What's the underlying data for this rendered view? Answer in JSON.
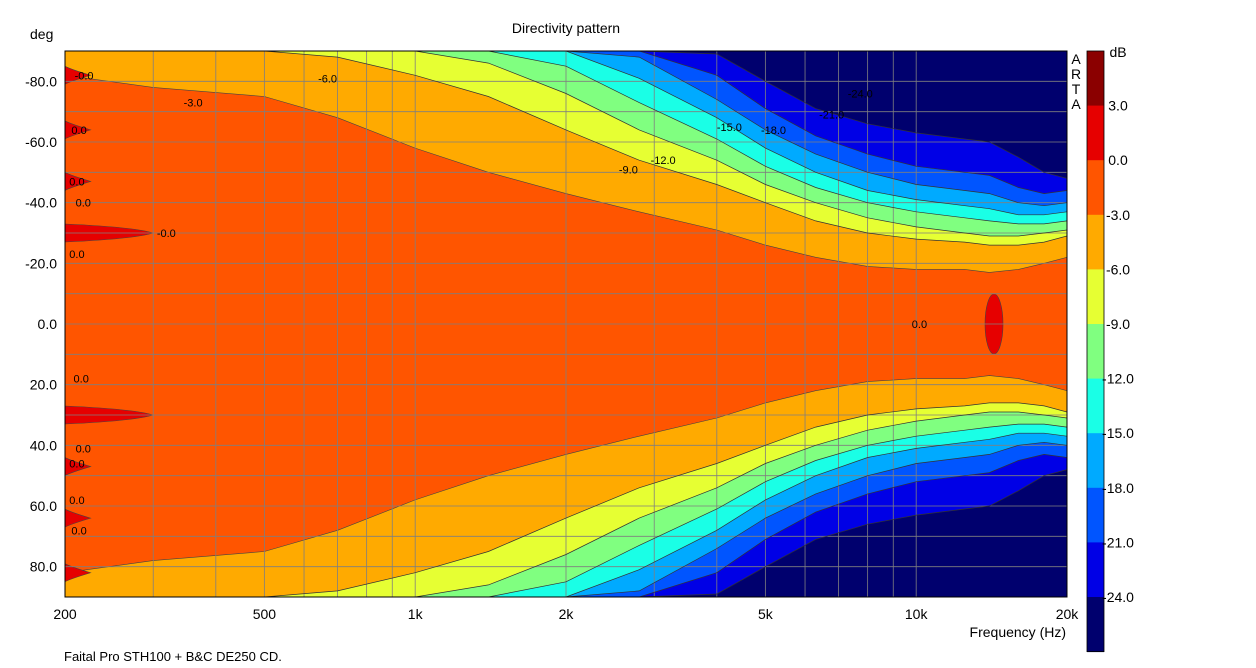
{
  "chart_data": {
    "type": "heatmap",
    "title": "Directivity pattern",
    "ylabel": "deg",
    "xlabel": "Frequency (Hz)",
    "caption": "Faital Pro STH100 + B&C DE250 CD.",
    "watermark": [
      "A",
      "R",
      "T",
      "A"
    ],
    "colorbar_label": "dB",
    "x_scale": "log",
    "xlim": [
      200,
      20000
    ],
    "ylim": [
      -90,
      90
    ],
    "y_inverted": true,
    "grid": true,
    "x_ticks": [
      {
        "value": 200,
        "label": "200"
      },
      {
        "value": 500,
        "label": "500"
      },
      {
        "value": 1000,
        "label": "1k"
      },
      {
        "value": 2000,
        "label": "2k"
      },
      {
        "value": 5000,
        "label": "5k"
      },
      {
        "value": 10000,
        "label": "10k"
      },
      {
        "value": 20000,
        "label": "20k"
      }
    ],
    "y_ticks": [
      {
        "value": -80,
        "label": "-80.0"
      },
      {
        "value": -60,
        "label": "-60.0"
      },
      {
        "value": -40,
        "label": "-40.0"
      },
      {
        "value": -20,
        "label": "-20.0"
      },
      {
        "value": 0,
        "label": "0.0"
      },
      {
        "value": 20,
        "label": "20.0"
      },
      {
        "value": 40,
        "label": "40.0"
      },
      {
        "value": 60,
        "label": "60.0"
      },
      {
        "value": 80,
        "label": "80.0"
      }
    ],
    "color_levels": [
      {
        "from": 3,
        "to": 6,
        "color": "#8b0000"
      },
      {
        "from": 0,
        "to": 3,
        "color": "#e60000"
      },
      {
        "from": -3,
        "to": 0,
        "color": "#ff5500"
      },
      {
        "from": -6,
        "to": -3,
        "color": "#ffaa00"
      },
      {
        "from": -9,
        "to": -6,
        "color": "#e6ff33"
      },
      {
        "from": -12,
        "to": -9,
        "color": "#80ff80"
      },
      {
        "from": -15,
        "to": -12,
        "color": "#1affe6"
      },
      {
        "from": -18,
        "to": -15,
        "color": "#00aaff"
      },
      {
        "from": -21,
        "to": -18,
        "color": "#0055ff"
      },
      {
        "from": -24,
        "to": -21,
        "color": "#0000e6"
      },
      {
        "from": -30,
        "to": -24,
        "color": "#00006e"
      }
    ],
    "colorbar_ticks": [
      "3.0",
      "0.0",
      "-3.0",
      "-6.0",
      "-9.0",
      "-12.0",
      "-15.0",
      "-18.0",
      "-21.0",
      "-24.0"
    ],
    "contours": [
      {
        "level": -6,
        "angle_deg": [
          90,
          90,
          90,
          88,
          82,
          75,
          64,
          54,
          46,
          40,
          34,
          30,
          28,
          27,
          26,
          26,
          27,
          29
        ],
        "freq_hz": [
          200,
          300,
          500,
          700,
          1000,
          1400,
          2000,
          2800,
          4000,
          5000,
          6300,
          8000,
          10000,
          12500,
          14000,
          16000,
          18000,
          20000
        ]
      },
      {
        "level": -9,
        "angle_deg": [
          90,
          90,
          90,
          90,
          90,
          86,
          76,
          64,
          54,
          46,
          40,
          35,
          32,
          30,
          29,
          29,
          30,
          31
        ],
        "freq_hz": [
          200,
          300,
          500,
          700,
          1000,
          1400,
          2000,
          2800,
          4000,
          5000,
          6300,
          8000,
          10000,
          12500,
          14000,
          16000,
          18000,
          20000
        ]
      },
      {
        "level": -12,
        "angle_deg": [
          90,
          90,
          90,
          90,
          90,
          90,
          85,
          73,
          61,
          52,
          45,
          40,
          37,
          35,
          34,
          33,
          33,
          34
        ],
        "freq_hz": [
          200,
          300,
          500,
          700,
          1000,
          1400,
          2000,
          2800,
          4000,
          5000,
          6300,
          8000,
          10000,
          12500,
          14000,
          16000,
          18000,
          20000
        ]
      },
      {
        "level": -15,
        "angle_deg": [
          90,
          90,
          90,
          90,
          90,
          90,
          90,
          81,
          68,
          58,
          50,
          44,
          41,
          39,
          38,
          36,
          36,
          37
        ],
        "freq_hz": [
          200,
          300,
          500,
          700,
          1000,
          1400,
          2000,
          2800,
          4000,
          5000,
          6300,
          8000,
          10000,
          12500,
          14000,
          16000,
          18000,
          20000
        ]
      },
      {
        "level": -18,
        "angle_deg": [
          90,
          90,
          90,
          90,
          90,
          90,
          90,
          88,
          74,
          64,
          56,
          50,
          46,
          44,
          43,
          40,
          39,
          40
        ],
        "freq_hz": [
          200,
          300,
          500,
          700,
          1000,
          1400,
          2000,
          2800,
          4000,
          5000,
          6300,
          8000,
          10000,
          12500,
          14000,
          16000,
          18000,
          20000
        ]
      },
      {
        "level": -21,
        "angle_deg": [
          90,
          90,
          90,
          90,
          90,
          90,
          90,
          90,
          82,
          71,
          62,
          56,
          52,
          50,
          49,
          45,
          43,
          44
        ],
        "freq_hz": [
          200,
          300,
          500,
          700,
          1000,
          1400,
          2000,
          2800,
          4000,
          5000,
          6300,
          8000,
          10000,
          12500,
          14000,
          16000,
          18000,
          20000
        ]
      },
      {
        "level": -24,
        "angle_deg": [
          90,
          90,
          90,
          90,
          90,
          90,
          90,
          90,
          89,
          80,
          71,
          66,
          63,
          61,
          60,
          55,
          50,
          48
        ],
        "freq_hz": [
          200,
          300,
          500,
          700,
          1000,
          1400,
          2000,
          2800,
          4000,
          5000,
          6300,
          8000,
          10000,
          12500,
          14000,
          16000,
          18000,
          20000
        ]
      }
    ],
    "contour_labels": [
      {
        "text": "-0.0",
        "freq_hz": 209,
        "angle_deg": -82
      },
      {
        "text": "-6.0",
        "freq_hz": 640,
        "angle_deg": -81
      },
      {
        "text": "-3.0",
        "freq_hz": 345,
        "angle_deg": -73
      },
      {
        "text": "0.0",
        "freq_hz": 206,
        "angle_deg": -64
      },
      {
        "text": "-24.0",
        "freq_hz": 7300,
        "angle_deg": -76
      },
      {
        "text": "-21.0",
        "freq_hz": 6400,
        "angle_deg": -69
      },
      {
        "text": "-18.0",
        "freq_hz": 4900,
        "angle_deg": -64
      },
      {
        "text": "-15.0",
        "freq_hz": 4000,
        "angle_deg": -65
      },
      {
        "text": "-12.0",
        "freq_hz": 2950,
        "angle_deg": -54
      },
      {
        "text": "-9.0",
        "freq_hz": 2550,
        "angle_deg": -51
      },
      {
        "text": "0.0",
        "freq_hz": 204,
        "angle_deg": -47
      },
      {
        "text": "0.0",
        "freq_hz": 210,
        "angle_deg": -40
      },
      {
        "text": "-0.0",
        "freq_hz": 305,
        "angle_deg": -30
      },
      {
        "text": "0.0",
        "freq_hz": 204,
        "angle_deg": -23
      },
      {
        "text": "0.0",
        "freq_hz": 9800,
        "angle_deg": 0
      },
      {
        "text": "0.0",
        "freq_hz": 208,
        "angle_deg": 18
      },
      {
        "text": "0.0",
        "freq_hz": 210,
        "angle_deg": 41
      },
      {
        "text": "0.0",
        "freq_hz": 204,
        "angle_deg": 46
      },
      {
        "text": "0.0",
        "freq_hz": 204,
        "angle_deg": 58
      },
      {
        "text": "0.0",
        "freq_hz": 206,
        "angle_deg": 68
      }
    ]
  }
}
